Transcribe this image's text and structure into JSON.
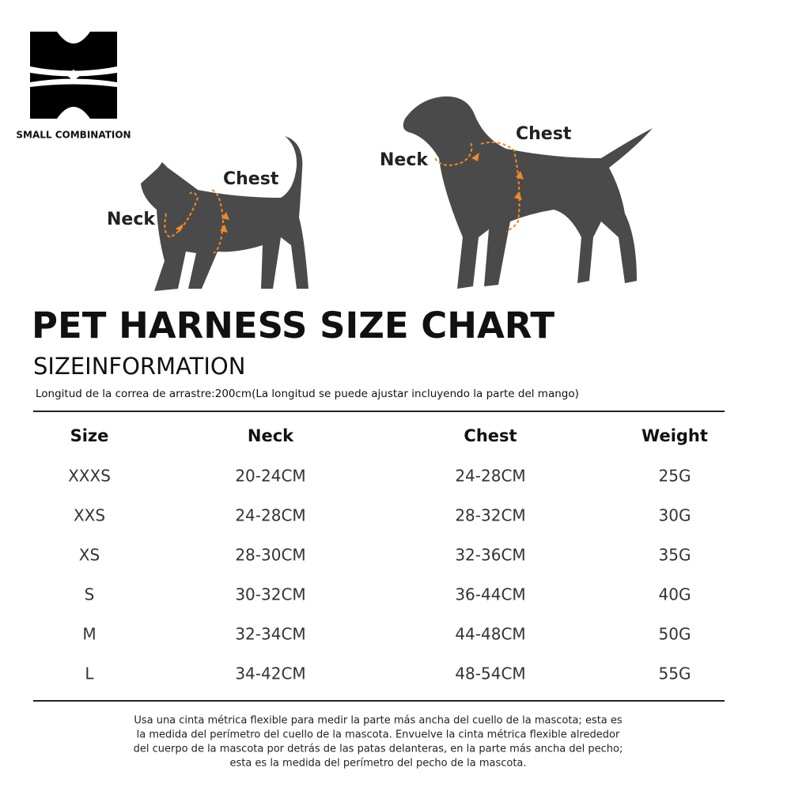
{
  "logo": {
    "text": "SMALL COMBINATION"
  },
  "cat": {
    "neck": "Neck",
    "chest": "Chest"
  },
  "dog": {
    "neck": "Neck",
    "chest": "Chest"
  },
  "header": {
    "title": "PET HARNESS SIZE CHART",
    "subtitle": "SIZEINFORMATION",
    "note": "Longitud de la correa de arrastre:200cm(La longitud se puede ajustar incluyendo la parte del mango)"
  },
  "table": {
    "columns": [
      "Size",
      "Neck",
      "Chest",
      "Weight"
    ],
    "rows": [
      [
        "XXXS",
        "20-24CM",
        "24-28CM",
        "25G"
      ],
      [
        "XXS",
        "24-28CM",
        "28-32CM",
        "30G"
      ],
      [
        "XS",
        "28-30CM",
        "32-36CM",
        "35G"
      ],
      [
        "S",
        "30-32CM",
        "36-44CM",
        "40G"
      ],
      [
        "M",
        "32-34CM",
        "44-48CM",
        "50G"
      ],
      [
        "L",
        "34-42CM",
        "48-54CM",
        "55G"
      ]
    ]
  },
  "footer": {
    "lines": [
      "Usa una cinta métrica flexible para medir la parte más ancha del cuello de la mascota; esta es",
      "la medida del perímetro del cuello de la mascota. Envuelve la cinta métrica flexible alrededor",
      "del cuerpo de la mascota por detrás de las patas delanteras, en la parte más ancha del pecho;",
      "esta es la medida del perímetro del pecho de la mascota."
    ]
  }
}
